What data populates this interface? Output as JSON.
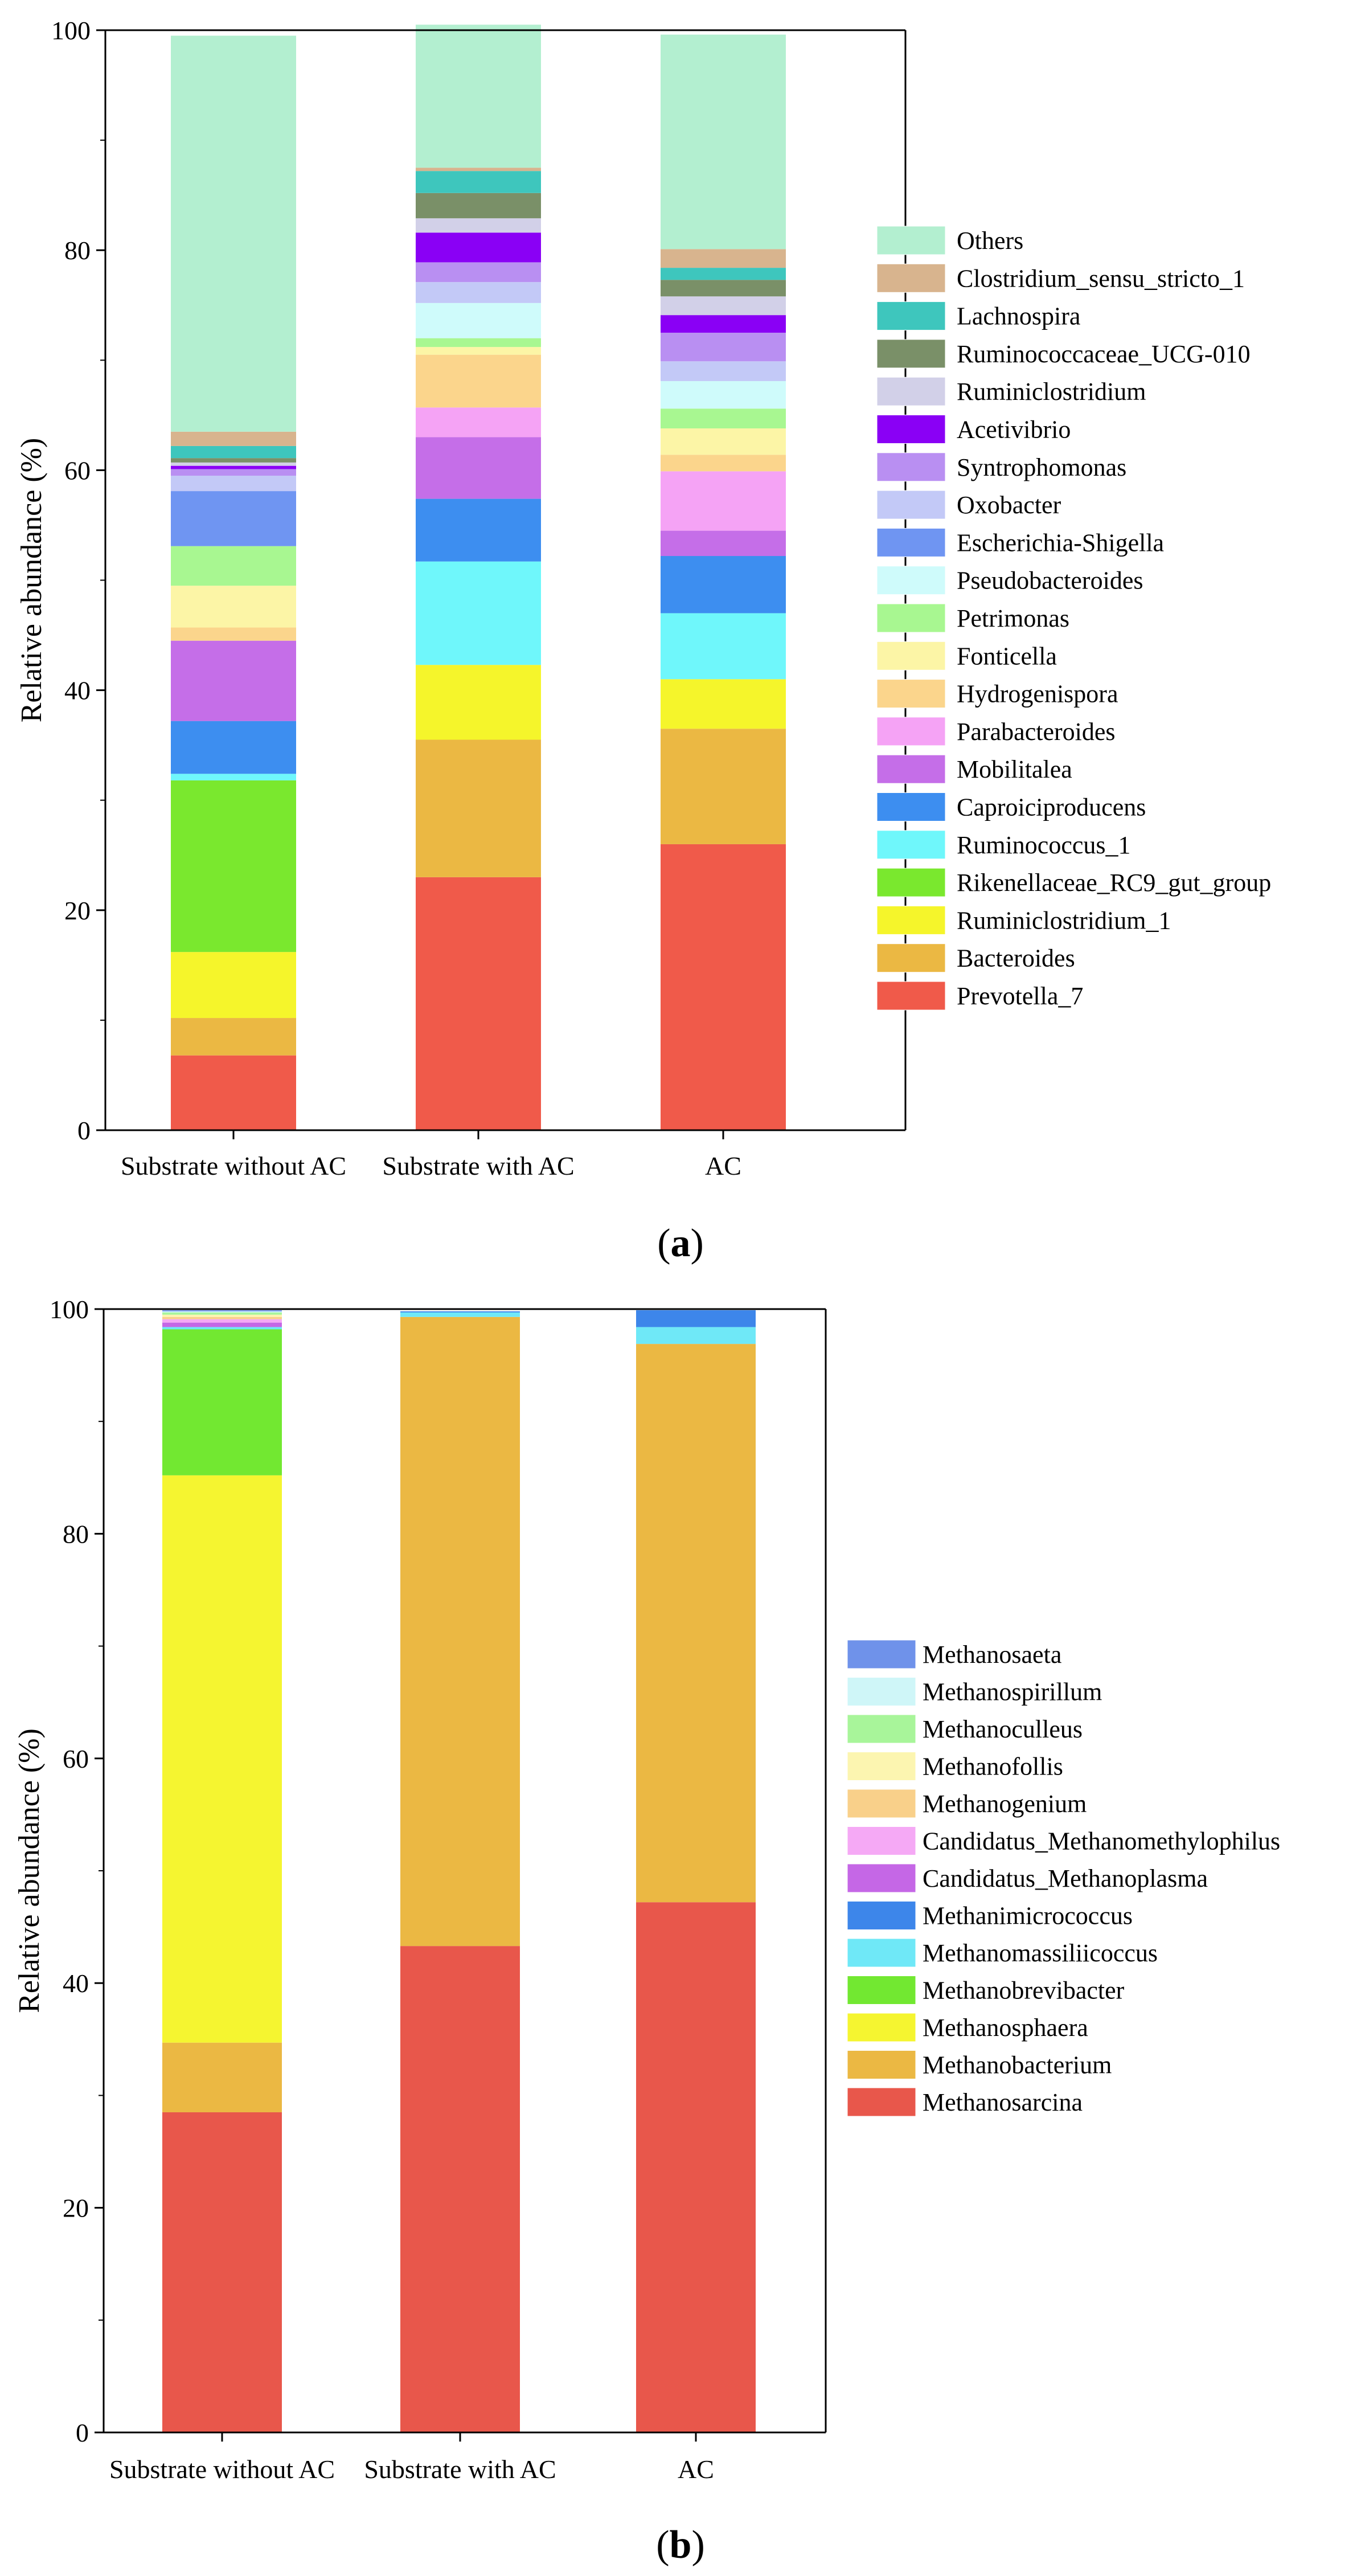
{
  "chart_data": [
    {
      "type": "bar",
      "stacked": true,
      "panel_label": "a",
      "categories": [
        "Substrate without AC",
        "Substrate with AC",
        "AC"
      ],
      "ylabel": "Relative abundance (%)",
      "ylim": [
        0,
        100
      ],
      "yticks": [
        0,
        20,
        40,
        60,
        80,
        100
      ],
      "legend_position": "right",
      "series": [
        {
          "name": "Prevotella_7",
          "color": "#f05a4a",
          "values": [
            6.8,
            23.0,
            26.0
          ]
        },
        {
          "name": "Bacteroides",
          "color": "#ebb843",
          "values": [
            3.4,
            12.5,
            10.5
          ]
        },
        {
          "name": "Ruminiclostridium_1",
          "color": "#f5f52b",
          "values": [
            6.0,
            6.8,
            4.5
          ]
        },
        {
          "name": "Rikenellaceae_RC9_gut_group",
          "color": "#7ae82e",
          "values": [
            15.6,
            0.0,
            0.0
          ]
        },
        {
          "name": "Ruminococcus_1",
          "color": "#6ff7fb",
          "values": [
            0.6,
            9.4,
            6.0
          ]
        },
        {
          "name": "Caproiciproducens",
          "color": "#3d8ef0",
          "values": [
            4.8,
            5.7,
            5.2
          ]
        },
        {
          "name": "Mobilitalea",
          "color": "#c56ee8",
          "values": [
            7.3,
            5.6,
            2.3
          ]
        },
        {
          "name": "Parabacteroides",
          "color": "#f5a3f5",
          "values": [
            0.0,
            2.7,
            5.4
          ]
        },
        {
          "name": "Hydrogenispora",
          "color": "#fbd58c",
          "values": [
            1.2,
            4.8,
            1.5
          ]
        },
        {
          "name": "Fonticella",
          "color": "#fcf5a6",
          "values": [
            3.8,
            0.7,
            2.4
          ]
        },
        {
          "name": "Petrimonas",
          "color": "#a8f791",
          "values": [
            3.6,
            0.8,
            1.8
          ]
        },
        {
          "name": "Pseudobacteroides",
          "color": "#cffbfb",
          "values": [
            0.0,
            3.2,
            2.5
          ]
        },
        {
          "name": "Escherichia-Shigella",
          "color": "#6f95f2",
          "values": [
            5.0,
            0.0,
            0.0
          ]
        },
        {
          "name": "Oxobacter",
          "color": "#c3c9f7",
          "values": [
            1.4,
            1.9,
            1.8
          ]
        },
        {
          "name": "Syntrophomonas",
          "color": "#b98ff2",
          "values": [
            0.6,
            1.8,
            2.6
          ]
        },
        {
          "name": "Acetivibrio",
          "color": "#8a00f5",
          "values": [
            0.3,
            2.7,
            1.6
          ]
        },
        {
          "name": "Ruminiclostridium",
          "color": "#d2d0e8",
          "values": [
            0.3,
            1.3,
            1.7
          ]
        },
        {
          "name": "Ruminococcaceae_UCG-010",
          "color": "#7a9068",
          "values": [
            0.4,
            2.3,
            1.5
          ]
        },
        {
          "name": "Lachnospira",
          "color": "#3ec6bd",
          "values": [
            1.1,
            2.0,
            1.1
          ]
        },
        {
          "name": "Clostridium_sensu_stricto_1",
          "color": "#d8b48e",
          "values": [
            1.3,
            0.3,
            1.7
          ]
        },
        {
          "name": "Others",
          "color": "#b3efd0",
          "values": [
            36.0,
            13.0,
            19.5
          ]
        }
      ]
    },
    {
      "type": "bar",
      "stacked": true,
      "panel_label": "b",
      "categories": [
        "Substrate without AC",
        "Substrate with AC",
        "AC"
      ],
      "ylabel": "Relative abundance (%)",
      "ylim": [
        0,
        100
      ],
      "yticks": [
        0,
        20,
        40,
        60,
        80,
        100
      ],
      "legend_position": "right",
      "series": [
        {
          "name": "Methanosarcina",
          "color": "#e8574b",
          "values": [
            28.5,
            43.3,
            47.2
          ]
        },
        {
          "name": "Methanobacterium",
          "color": "#ebb843",
          "values": [
            6.2,
            56.0,
            49.7
          ]
        },
        {
          "name": "Methanosphaera",
          "color": "#f5f530",
          "values": [
            50.5,
            0.0,
            0.0
          ]
        },
        {
          "name": "Methanobrevibacter",
          "color": "#72e831",
          "values": [
            13.0,
            0.0,
            0.0
          ]
        },
        {
          "name": "Methanomassiliicoccus",
          "color": "#6fe8f7",
          "values": [
            0.2,
            0.4,
            1.5
          ]
        },
        {
          "name": "Methanimicrococcus",
          "color": "#3d86ea",
          "values": [
            0.0,
            0.1,
            1.5
          ]
        },
        {
          "name": "Candidatus_Methanoplasma",
          "color": "#c567e6",
          "values": [
            0.4,
            0.0,
            0.0
          ]
        },
        {
          "name": "Candidatus_Methanomethylophilus",
          "color": "#f5a9f5",
          "values": [
            0.3,
            0.0,
            0.0
          ]
        },
        {
          "name": "Methanogenium",
          "color": "#f9d08a",
          "values": [
            0.2,
            0.0,
            0.0
          ]
        },
        {
          "name": "Methanofollis",
          "color": "#fcf5b0",
          "values": [
            0.2,
            0.0,
            0.0
          ]
        },
        {
          "name": "Methanoculleus",
          "color": "#a8f59a",
          "values": [
            0.2,
            0.0,
            0.0
          ]
        },
        {
          "name": "Methanospirillum",
          "color": "#cff6f8",
          "values": [
            0.1,
            0.0,
            0.0
          ]
        },
        {
          "name": "Methanosaeta",
          "color": "#6f92ea",
          "values": [
            0.1,
            0.0,
            0.0
          ]
        }
      ]
    }
  ]
}
